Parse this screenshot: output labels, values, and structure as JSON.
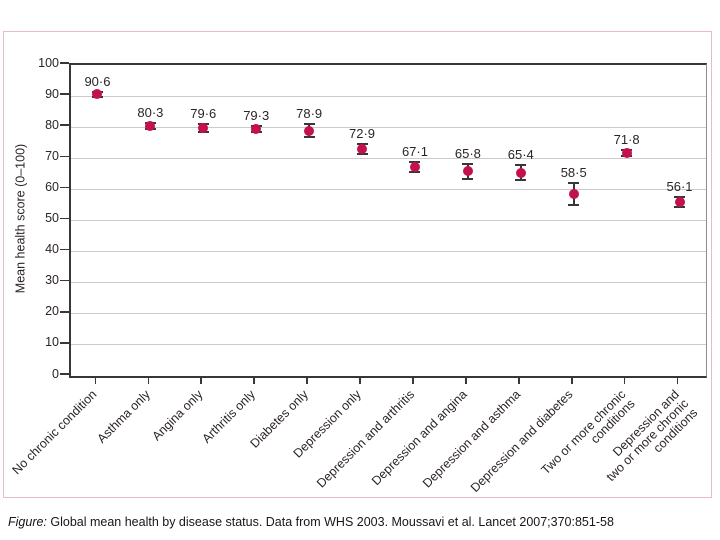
{
  "caption": {
    "prefix": "Figure:",
    "text": " Global mean health by disease status. Data from WHS 2003. Moussavi et al. Lancet 2007;370:851-58"
  },
  "chart_data": {
    "type": "scatter",
    "title": "",
    "xlabel": "",
    "ylabel": "Mean health score (0–100)",
    "ylim": [
      0,
      100
    ],
    "yticks": [
      0,
      10,
      20,
      30,
      40,
      50,
      60,
      70,
      80,
      90,
      100
    ],
    "grid": "horizontal",
    "legend": "none",
    "categories": [
      [
        "No chronic condition"
      ],
      [
        "Asthma only"
      ],
      [
        "Angina only"
      ],
      [
        "Arthritis only"
      ],
      [
        "Diabetes only"
      ],
      [
        "Depression only"
      ],
      [
        "Depression and arthritis"
      ],
      [
        "Depression and angina"
      ],
      [
        "Depression and asthma"
      ],
      [
        "Depression and diabetes"
      ],
      [
        "Two or more chronic",
        "conditions"
      ],
      [
        "Depression and",
        "two or more chronic",
        "conditions"
      ]
    ],
    "values": [
      90.6,
      80.3,
      79.6,
      79.3,
      78.9,
      72.9,
      67.1,
      65.8,
      65.4,
      58.5,
      71.8,
      56.1
    ],
    "value_labels": [
      "90·6",
      "80·3",
      "79·6",
      "79·3",
      "78·9",
      "72·9",
      "67·1",
      "65·8",
      "65·4",
      "58·5",
      "71·8",
      "56·1"
    ],
    "errors": [
      0.8,
      1.0,
      1.3,
      1.0,
      2.2,
      1.6,
      1.6,
      2.3,
      2.3,
      3.5,
      1.0,
      1.6
    ],
    "colors": {
      "marker": "#c3114f",
      "error_bar": "#3a3634",
      "grid": "#cbcbcb",
      "axis": "#3a3634",
      "panel_border": "#e7bcc6",
      "text": "#2b2523"
    }
  }
}
